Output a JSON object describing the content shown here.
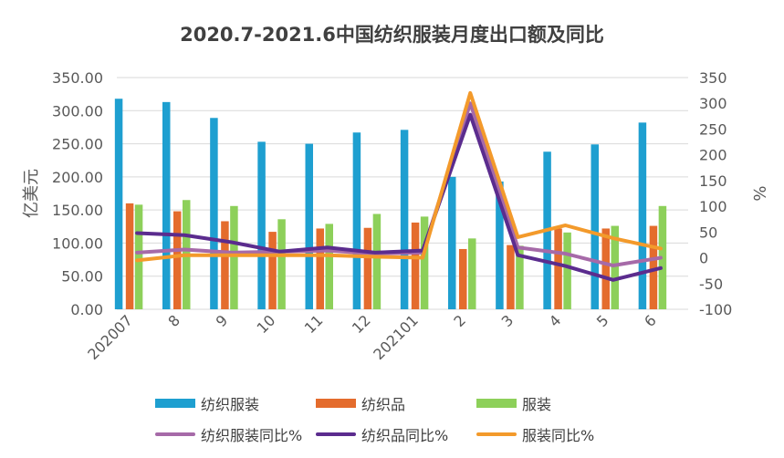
{
  "chart_data": {
    "type": "bar+line",
    "title": "2020.7-2021.6中国纺织服装月度出口额及同比",
    "categories": [
      "202007",
      "8",
      "9",
      "10",
      "11",
      "12",
      "202101",
      "2",
      "3",
      "4",
      "5",
      "6"
    ],
    "ylabel_left": "亿美元",
    "ylabel_right": "%",
    "ylim_left": [
      0,
      350
    ],
    "ylim_right": [
      -100,
      350
    ],
    "left_ticks": [
      "0.00",
      "50.00",
      "100.00",
      "150.00",
      "200.00",
      "250.00",
      "300.00",
      "350.00"
    ],
    "right_ticks": [
      "-100",
      "-50",
      "0",
      "50",
      "100",
      "150",
      "200",
      "250",
      "300",
      "350"
    ],
    "bar_series": [
      {
        "name": "纺织服装",
        "color": "#1E9FD0",
        "values": [
          318,
          313,
          289,
          253,
          250,
          267,
          271,
          200,
          193,
          238,
          249,
          282
        ]
      },
      {
        "name": "纺织品",
        "color": "#E46C2D",
        "values": [
          160,
          148,
          133,
          117,
          122,
          123,
          131,
          91,
          97,
          122,
          122,
          126
        ]
      },
      {
        "name": "服装",
        "color": "#8DD05A",
        "values": [
          158,
          165,
          156,
          136,
          129,
          144,
          140,
          107,
          96,
          116,
          126,
          156
        ]
      }
    ],
    "line_series": [
      {
        "name": "纺织服装同比%",
        "color": "#A66AA8",
        "values": [
          10,
          16,
          10,
          12,
          14,
          8,
          10,
          300,
          20,
          8,
          -15,
          0
        ]
      },
      {
        "name": "纺织品同比%",
        "color": "#5B2C8E",
        "values": [
          48,
          44,
          30,
          12,
          20,
          10,
          14,
          278,
          5,
          -16,
          -43,
          -20
        ]
      },
      {
        "name": "服装同比%",
        "color": "#F39A2B",
        "values": [
          -5,
          5,
          5,
          5,
          5,
          2,
          0,
          320,
          40,
          63,
          38,
          18
        ]
      }
    ]
  }
}
